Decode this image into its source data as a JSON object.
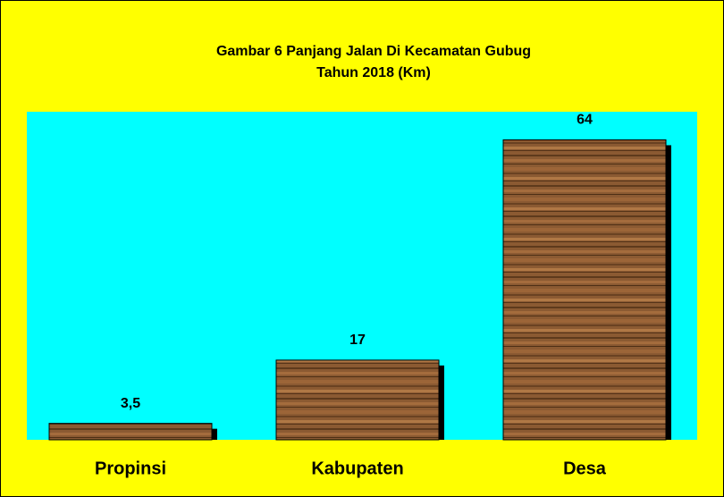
{
  "chart_data": {
    "type": "bar",
    "title": "Gambar 6 Panjang Jalan Di Kecamatan Gubug",
    "subtitle": "Tahun 2018 (Km)",
    "categories": [
      "Propinsi",
      "Kabupaten",
      "Desa"
    ],
    "values": [
      3.5,
      17,
      64
    ],
    "value_labels": [
      "3,5",
      "17",
      "64"
    ],
    "color": "#8b5a32",
    "ylim": [
      0,
      70
    ]
  }
}
